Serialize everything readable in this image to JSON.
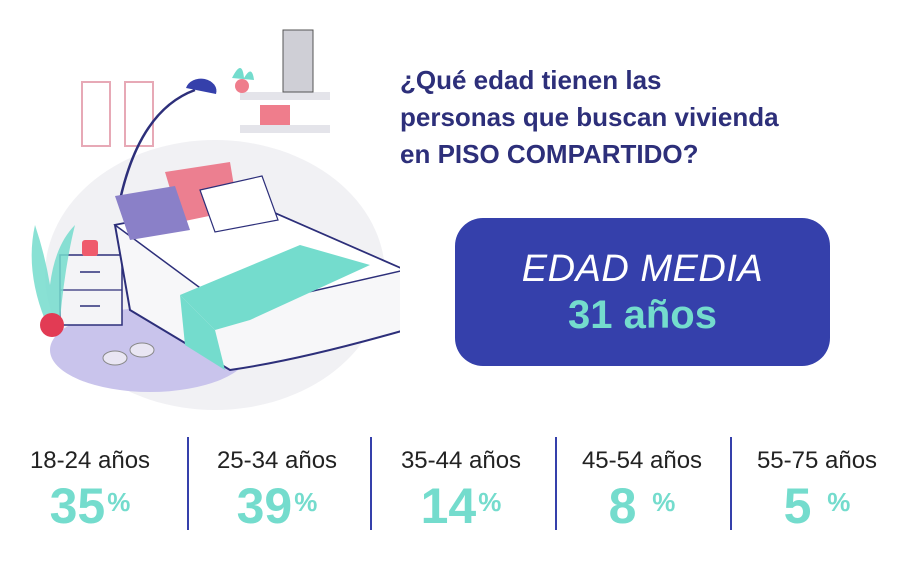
{
  "question": {
    "line1": "¿Qué edad tienen las",
    "line2": "personas que buscan vivienda",
    "line3": "en PISO COMPARTIDO?"
  },
  "average": {
    "label": "EDAD MEDIA",
    "value": "31 años"
  },
  "percent_sign": "%",
  "colors": {
    "navy": "#2d2f7a",
    "box": "#3540ab",
    "teal": "#74dccd"
  },
  "chart_data": {
    "type": "table",
    "categories": [
      "18-24 años",
      "25-34 años",
      "35-44 años",
      "45-54 años",
      "55-75 años"
    ],
    "values": [
      35,
      39,
      14,
      8,
      5
    ],
    "display": [
      "35",
      "39",
      "14",
      "8 ",
      "5 "
    ],
    "unit": "%"
  }
}
